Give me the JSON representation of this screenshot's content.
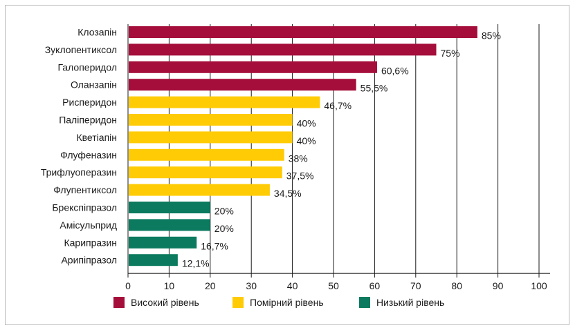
{
  "chart_data": {
    "type": "bar",
    "orientation": "horizontal",
    "categories": [
      "Клозапін",
      "Зуклопентиксол",
      "Галоперидол",
      "Оланзапін",
      "Рисперидон",
      "Паліперидон",
      "Кветіапін",
      "Флуфеназин",
      "Трифлуоперазин",
      "Флупентиксол",
      "Брекспіпразол",
      "Амісульприд",
      "Карипразин",
      "Арипіпразол"
    ],
    "values": [
      85,
      75,
      60.6,
      55.5,
      46.7,
      40,
      40,
      38,
      37.5,
      34.5,
      20,
      20,
      16.7,
      12.1
    ],
    "value_labels": [
      "85%",
      "75%",
      "60,6%",
      "55,5%",
      "46,7%",
      "40%",
      "40%",
      "38%",
      "37,5%",
      "34,5%",
      "20%",
      "20%",
      "16,7%",
      "12,1%"
    ],
    "groups": [
      "high",
      "high",
      "high",
      "high",
      "moderate",
      "moderate",
      "moderate",
      "moderate",
      "moderate",
      "moderate",
      "low",
      "low",
      "low",
      "low"
    ],
    "legend": [
      {
        "key": "high",
        "label": "Високий рівень",
        "color": "#a50d3a"
      },
      {
        "key": "moderate",
        "label": "Помірний рівень",
        "color": "#ffcb05"
      },
      {
        "key": "low",
        "label": "Низький рівень",
        "color": "#0b7a5e"
      }
    ],
    "xlim": [
      0,
      100
    ],
    "xticks": [
      0,
      10,
      20,
      30,
      40,
      50,
      60,
      70,
      80,
      90,
      100
    ],
    "grid": "vertical",
    "legend_position": "bottom",
    "title": "",
    "xlabel": "",
    "ylabel": ""
  }
}
